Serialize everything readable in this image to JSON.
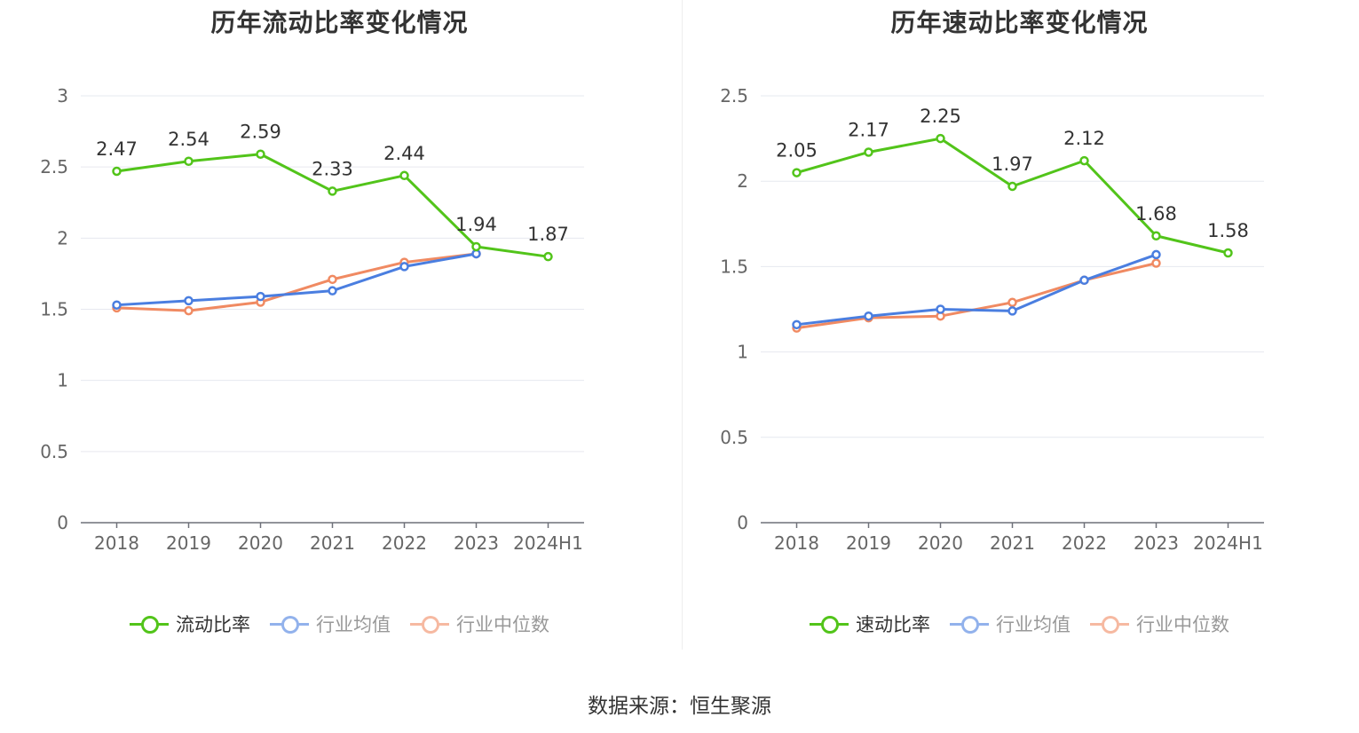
{
  "source": "数据来源：恒生聚源",
  "chart_data": [
    {
      "type": "line",
      "title": "历年流动比率变化情况",
      "categories": [
        "2018",
        "2019",
        "2020",
        "2021",
        "2022",
        "2023",
        "2024H1"
      ],
      "ylim": [
        0,
        3
      ],
      "yticks": [
        "0",
        "0.5",
        "1",
        "1.5",
        "2",
        "2.5",
        "3"
      ],
      "grid": true,
      "legend_position": "bottom",
      "series": [
        {
          "name": "流动比率",
          "color": "#52c41a",
          "values": [
            2.47,
            2.54,
            2.59,
            2.33,
            2.44,
            1.94,
            1.87
          ],
          "labels": [
            "2.47",
            "2.54",
            "2.59",
            "2.33",
            "2.44",
            "1.94",
            "1.87"
          ]
        },
        {
          "name": "行业均值",
          "color": "#4a7ee0",
          "values": [
            1.53,
            1.56,
            1.59,
            1.63,
            1.8,
            1.89,
            null
          ]
        },
        {
          "name": "行业中位数",
          "color": "#f08a62",
          "values": [
            1.51,
            1.49,
            1.55,
            1.71,
            1.83,
            1.89,
            null
          ]
        }
      ]
    },
    {
      "type": "line",
      "title": "历年速动比率变化情况",
      "categories": [
        "2018",
        "2019",
        "2020",
        "2021",
        "2022",
        "2023",
        "2024H1"
      ],
      "ylim": [
        0,
        2.5
      ],
      "yticks": [
        "0",
        "0.5",
        "1",
        "1.5",
        "2",
        "2.5"
      ],
      "grid": true,
      "legend_position": "bottom",
      "series": [
        {
          "name": "速动比率",
          "color": "#52c41a",
          "values": [
            2.05,
            2.17,
            2.25,
            1.97,
            2.12,
            1.68,
            1.58
          ],
          "labels": [
            "2.05",
            "2.17",
            "2.25",
            "1.97",
            "2.12",
            "1.68",
            "1.58"
          ]
        },
        {
          "name": "行业均值",
          "color": "#4a7ee0",
          "values": [
            1.16,
            1.21,
            1.25,
            1.24,
            1.42,
            1.57,
            null
          ]
        },
        {
          "name": "行业中位数",
          "color": "#f08a62",
          "values": [
            1.14,
            1.2,
            1.21,
            1.29,
            1.42,
            1.52,
            null
          ]
        }
      ]
    }
  ]
}
